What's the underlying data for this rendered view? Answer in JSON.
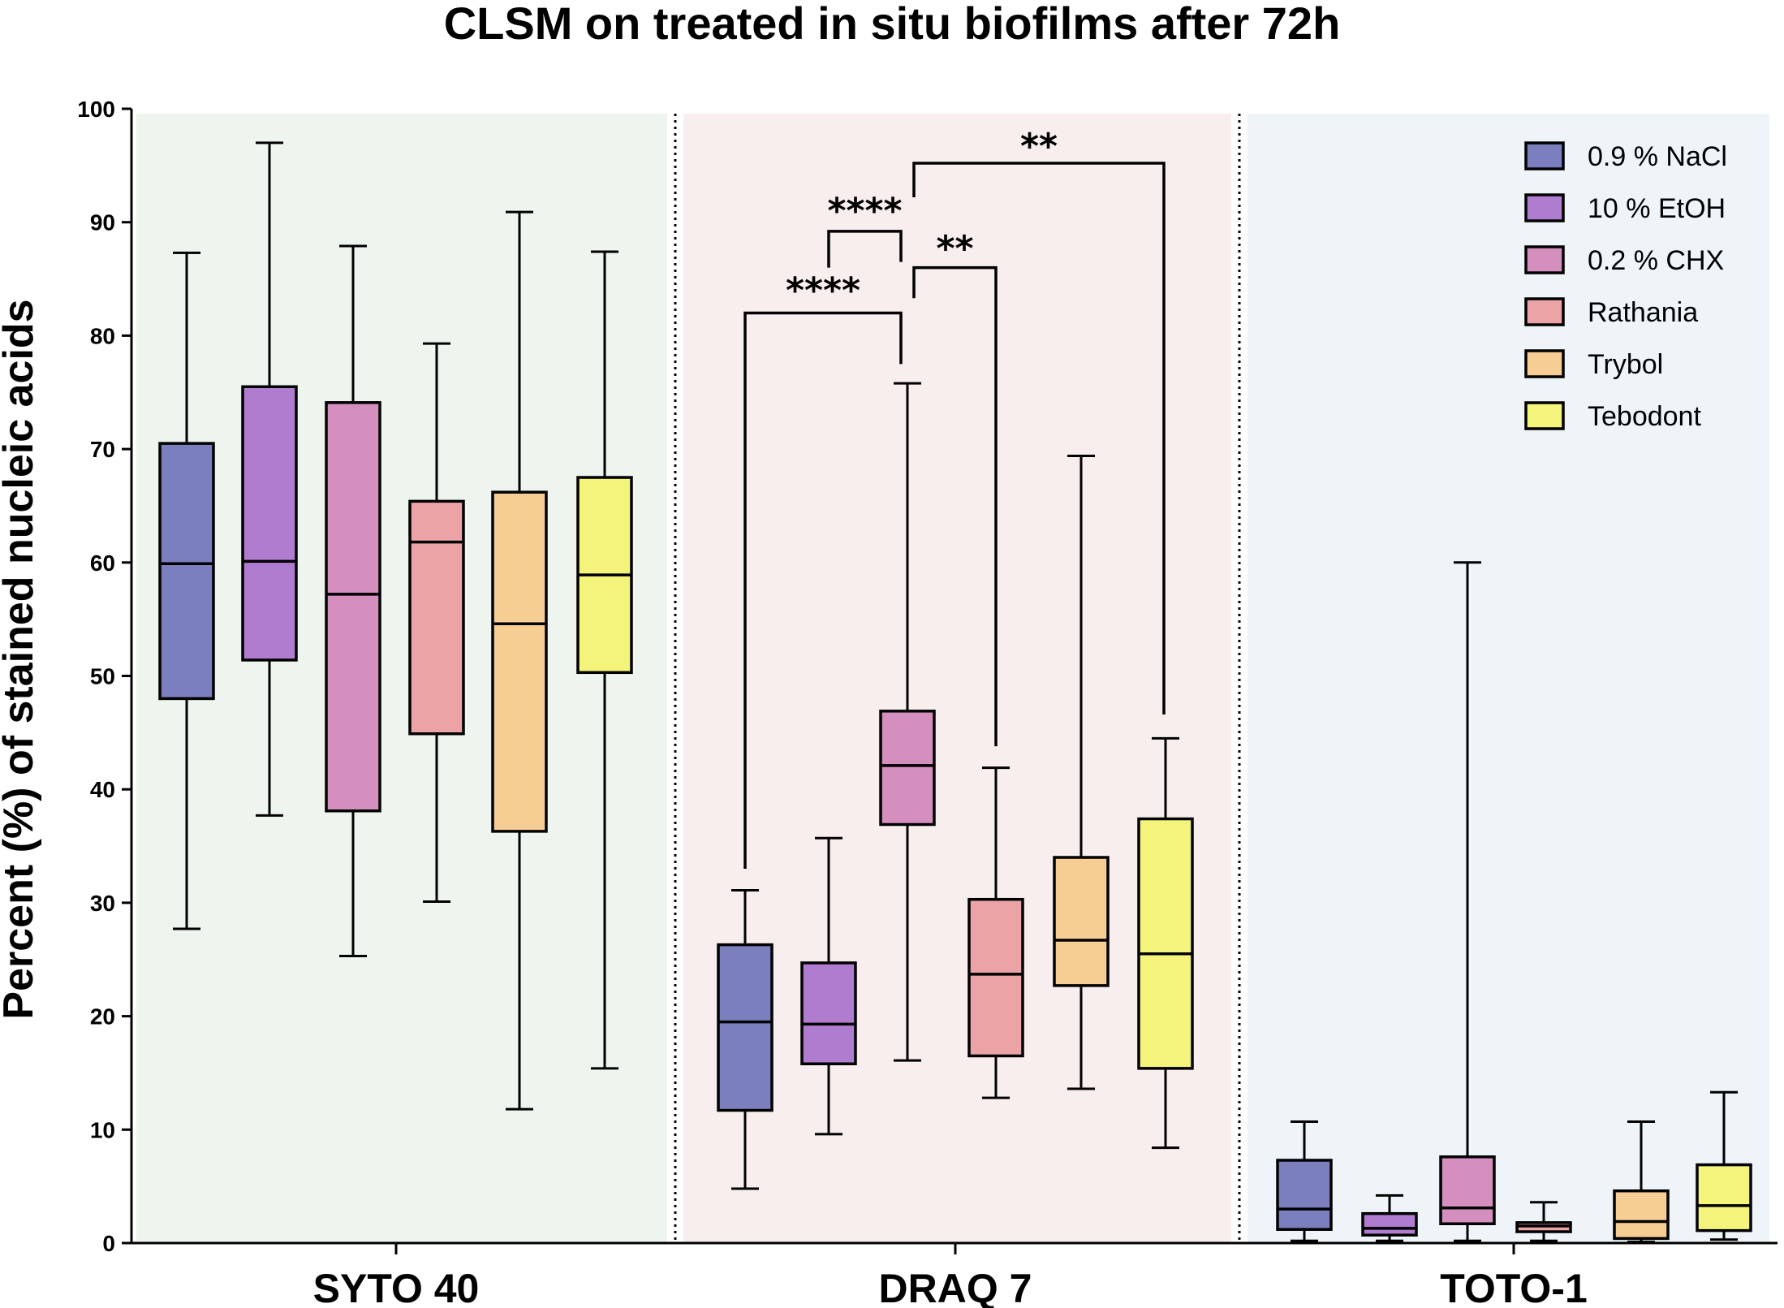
{
  "chart_data": {
    "type": "box",
    "title": "CLSM on treated in situ biofilms after 72h",
    "xlabel": "",
    "ylabel": "Percent (%) of stained nucleic acids",
    "ylim": [
      0,
      100
    ],
    "yticks": [
      0,
      10,
      20,
      30,
      40,
      50,
      60,
      70,
      80,
      90,
      100
    ],
    "legend_position": "top-right",
    "series": [
      {
        "name": "0.9 % NaCl",
        "color": "#7b7fbd"
      },
      {
        "name": "10 % EtOH",
        "color": "#b07cd0"
      },
      {
        "name": "0.2 % CHX",
        "color": "#d48fbf"
      },
      {
        "name": "Rathania",
        "color": "#eba3a5"
      },
      {
        "name": "Trybol",
        "color": "#f6cd93"
      },
      {
        "name": "Tebodont",
        "color": "#f4f47c"
      }
    ],
    "groups": [
      {
        "label": "SYTO 40",
        "background": "#eef5ee",
        "boxes": [
          {
            "min": 27.7,
            "q1": 48.0,
            "median": 59.9,
            "q3": 70.5,
            "max": 87.3
          },
          {
            "min": 37.7,
            "q1": 51.4,
            "median": 60.1,
            "q3": 75.5,
            "max": 97.0
          },
          {
            "min": 25.3,
            "q1": 38.1,
            "median": 57.2,
            "q3": 74.1,
            "max": 87.9
          },
          {
            "min": 30.1,
            "q1": 44.9,
            "median": 61.8,
            "q3": 65.4,
            "max": 79.3
          },
          {
            "min": 11.8,
            "q1": 36.3,
            "median": 54.6,
            "q3": 66.2,
            "max": 90.9
          },
          {
            "min": 15.4,
            "q1": 50.3,
            "median": 58.9,
            "q3": 67.5,
            "max": 87.4
          }
        ]
      },
      {
        "label": "DRAQ 7",
        "background": "#f8eeee",
        "boxes": [
          {
            "min": 4.8,
            "q1": 11.7,
            "median": 19.5,
            "q3": 26.3,
            "max": 31.1
          },
          {
            "min": 9.6,
            "q1": 15.8,
            "median": 19.3,
            "q3": 24.7,
            "max": 35.7
          },
          {
            "min": 16.1,
            "q1": 36.9,
            "median": 42.1,
            "q3": 46.9,
            "max": 75.8
          },
          {
            "min": 12.8,
            "q1": 16.5,
            "median": 23.7,
            "q3": 30.3,
            "max": 41.9
          },
          {
            "min": 13.6,
            "q1": 22.7,
            "median": 26.7,
            "q3": 34.0,
            "max": 69.4
          },
          {
            "min": 8.4,
            "q1": 15.4,
            "median": 25.5,
            "q3": 37.4,
            "max": 44.5
          }
        ]
      },
      {
        "label": "TOTO-1",
        "background": "#eef4f8",
        "boxes": [
          {
            "min": 0.2,
            "q1": 1.2,
            "median": 3.0,
            "q3": 7.3,
            "max": 10.7
          },
          {
            "min": 0.2,
            "q1": 0.7,
            "median": 1.3,
            "q3": 2.6,
            "max": 4.2
          },
          {
            "min": 0.2,
            "q1": 1.7,
            "median": 3.1,
            "q3": 7.6,
            "max": 60.0
          },
          {
            "min": 0.2,
            "q1": 1.0,
            "median": 1.5,
            "q3": 1.8,
            "max": 3.6
          },
          {
            "min": 0.1,
            "q1": 0.4,
            "median": 1.9,
            "q3": 4.6,
            "max": 10.7
          },
          {
            "min": 0.3,
            "q1": 1.1,
            "median": 3.3,
            "q3": 6.9,
            "max": 13.3
          }
        ]
      }
    ],
    "annotations": [
      {
        "group": "DRAQ 7",
        "from": "0.9 % NaCl",
        "to": "0.2 % CHX",
        "label": "****"
      },
      {
        "group": "DRAQ 7",
        "from": "10 % EtOH",
        "to": "0.2 % CHX",
        "label": "****"
      },
      {
        "group": "DRAQ 7",
        "from": "0.2 % CHX",
        "to": "Rathania",
        "label": "**"
      },
      {
        "group": "DRAQ 7",
        "from": "0.2 % CHX",
        "to": "Tebodont",
        "label": "**"
      }
    ]
  }
}
